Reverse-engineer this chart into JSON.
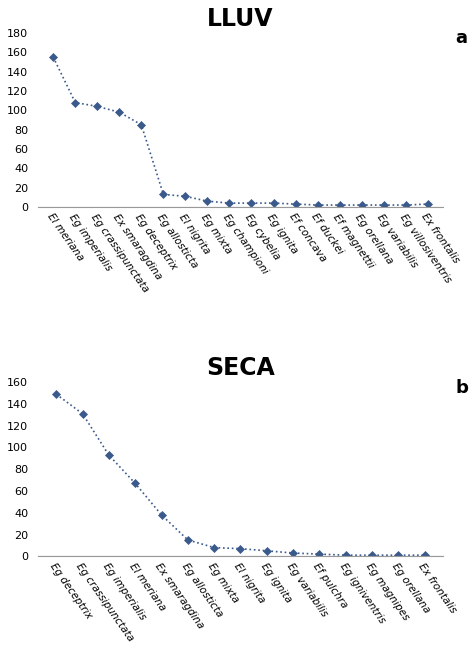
{
  "lluv": {
    "title": "LLUV",
    "label": "a",
    "species": [
      "El meriana",
      "Eg imperialis",
      "Eg crassipunctata",
      "Ex smaragdina",
      "Eg deceptrix",
      "Eg allosticta",
      "El nigrita",
      "Eg mixta",
      "Eg championi",
      "Eg cybelia",
      "Eg ignita",
      "Ef concava",
      "Ef duckei",
      "Ef magnettii",
      "Eg orellana",
      "Eg variabilis",
      "Eg villosiventris",
      "Ex frontalis"
    ],
    "values": [
      155,
      108,
      104,
      98,
      85,
      13,
      11,
      6,
      4,
      4,
      4,
      3,
      2,
      2,
      2,
      2,
      2,
      3
    ],
    "ylim": [
      0,
      180
    ],
    "yticks": [
      0,
      20,
      40,
      60,
      80,
      100,
      120,
      140,
      160,
      180
    ]
  },
  "seca": {
    "title": "SECA",
    "label": "b",
    "species": [
      "Eg deceptrix",
      "Eg crassipunctata",
      "Eg imperialis",
      "El meriana",
      "Ex smaragdina",
      "Eg allosticta",
      "Eg mixta",
      "El nigrita",
      "Eg ignita",
      "Eg variabilis",
      "Ef pulchra",
      "Eg igniventris",
      "Eg magnipes",
      "Eg orellana",
      "Ex frontalis"
    ],
    "values": [
      149,
      131,
      93,
      67,
      38,
      15,
      8,
      7,
      5,
      3,
      2,
      1,
      1,
      1,
      1
    ],
    "ylim": [
      0,
      160
    ],
    "yticks": [
      0,
      20,
      40,
      60,
      80,
      100,
      120,
      140,
      160
    ]
  },
  "line_color": "#3a5a8c",
  "marker": "D",
  "marker_size": 4,
  "linestyle": ":",
  "linewidth": 1.2,
  "bg_color": "#ffffff",
  "tick_label_fontsize": 7.5,
  "title_fontsize": 17,
  "label_fontsize": 13,
  "ytick_fontsize": 8
}
